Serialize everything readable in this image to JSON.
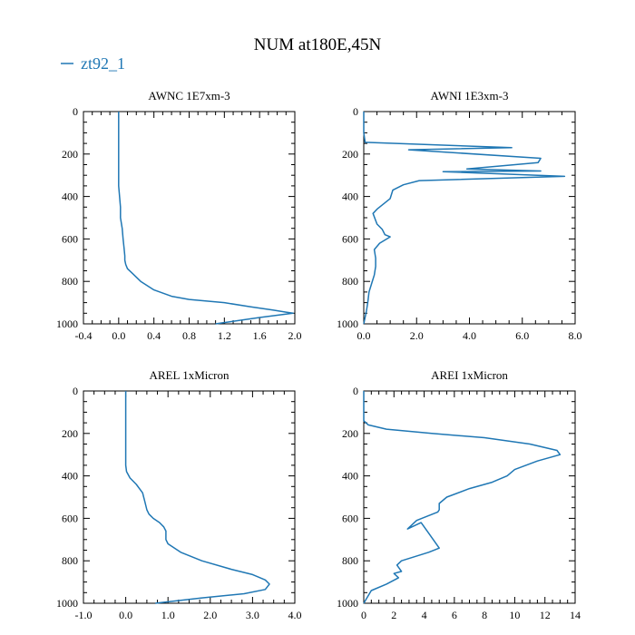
{
  "figure": {
    "title": "NUM at180E,45N",
    "legend": [
      {
        "label": "zt92_1",
        "color": "#1f77b4"
      }
    ]
  },
  "chart_data": [
    {
      "type": "line",
      "title": "AWNC  1E7xm-3",
      "xlim": [
        -0.4,
        2.0
      ],
      "ylim": [
        1000,
        0
      ],
      "x_ticks": [
        "-0.4",
        "0.0",
        "0.4",
        "0.8",
        "1.2",
        "1.6",
        "2.0"
      ],
      "x_tick_values": [
        -0.4,
        0.0,
        0.4,
        0.8,
        1.2,
        1.6,
        2.0
      ],
      "y_ticks": [
        "0",
        "200",
        "400",
        "600",
        "800",
        "1000"
      ],
      "y_tick_values": [
        0,
        200,
        400,
        600,
        800,
        1000
      ],
      "series": [
        {
          "name": "zt92_1",
          "color": "#1f77b4",
          "x": [
            0.0,
            0.0,
            0.0,
            0.0,
            0.0,
            0.01,
            0.02,
            0.02,
            0.04,
            0.05,
            0.06,
            0.07,
            0.07,
            0.08,
            0.1,
            0.15,
            0.25,
            0.4,
            0.6,
            0.8,
            1.2,
            1.5,
            1.75,
            1.9,
            1.98,
            1.6,
            1.1
          ],
          "y": [
            0,
            100,
            200,
            300,
            350,
            400,
            450,
            500,
            550,
            600,
            640,
            680,
            700,
            720,
            740,
            760,
            800,
            840,
            870,
            885,
            900,
            920,
            935,
            945,
            950,
            970,
            1000
          ]
        }
      ]
    },
    {
      "type": "line",
      "title": "AWNI  1E3xm-3",
      "xlim": [
        0.0,
        8.0
      ],
      "ylim": [
        1000,
        0
      ],
      "x_ticks": [
        "0.0",
        "2.0",
        "4.0",
        "6.0",
        "8.0"
      ],
      "x_tick_values": [
        0,
        2,
        4,
        6,
        8
      ],
      "y_ticks": [
        "0",
        "200",
        "400",
        "600",
        "800",
        "1000"
      ],
      "y_tick_values": [
        0,
        200,
        400,
        600,
        800,
        1000
      ],
      "series": [
        {
          "name": "zt92_1",
          "color": "#1f77b4",
          "x": [
            0.0,
            0.0,
            0.0,
            0.05,
            5.6,
            1.7,
            6.7,
            6.6,
            3.9,
            6.7,
            3.0,
            7.6,
            2.1,
            1.5,
            1.1,
            1.0,
            0.5,
            0.35,
            0.5,
            0.7,
            0.8,
            1.0,
            0.6,
            0.4,
            0.45,
            0.45,
            0.4,
            0.3,
            0.2,
            0.15,
            0.1,
            0.0
          ],
          "y": [
            0,
            60,
            100,
            145,
            170,
            180,
            220,
            240,
            270,
            280,
            283,
            305,
            325,
            345,
            370,
            410,
            460,
            480,
            530,
            555,
            580,
            590,
            620,
            650,
            690,
            730,
            770,
            810,
            850,
            900,
            940,
            1000
          ]
        }
      ]
    },
    {
      "type": "line",
      "title": "AREL  1xMicron",
      "xlim": [
        -1.0,
        4.0
      ],
      "ylim": [
        1000,
        0
      ],
      "x_ticks": [
        "-1.0",
        "0.0",
        "1.0",
        "2.0",
        "3.0",
        "4.0"
      ],
      "x_tick_values": [
        -1,
        0,
        1,
        2,
        3,
        4
      ],
      "y_ticks": [
        "0",
        "200",
        "400",
        "600",
        "800",
        "1000"
      ],
      "y_tick_values": [
        0,
        200,
        400,
        600,
        800,
        1000
      ],
      "series": [
        {
          "name": "zt92_1",
          "color": "#1f77b4",
          "x": [
            0.0,
            0.0,
            0.0,
            0.0,
            0.0,
            0.02,
            0.1,
            0.25,
            0.4,
            0.45,
            0.5,
            0.55,
            0.65,
            0.8,
            0.9,
            0.95,
            0.95,
            1.0,
            1.3,
            1.8,
            2.5,
            3.0,
            3.3,
            3.4,
            3.3,
            2.8,
            1.8,
            0.7
          ],
          "y": [
            0,
            100,
            200,
            300,
            350,
            380,
            410,
            440,
            480,
            520,
            560,
            580,
            600,
            620,
            640,
            660,
            700,
            720,
            760,
            800,
            840,
            865,
            890,
            910,
            935,
            955,
            975,
            1000
          ]
        }
      ]
    },
    {
      "type": "line",
      "title": "AREI  1xMicron",
      "xlim": [
        0,
        14
      ],
      "ylim": [
        1000,
        0
      ],
      "x_ticks": [
        "0",
        "2",
        "4",
        "6",
        "8",
        "10",
        "12",
        "14"
      ],
      "x_tick_values": [
        0,
        2,
        4,
        6,
        8,
        10,
        12,
        14
      ],
      "y_ticks": [
        "0",
        "200",
        "400",
        "600",
        "800",
        "1000"
      ],
      "y_tick_values": [
        0,
        200,
        400,
        600,
        800,
        1000
      ],
      "series": [
        {
          "name": "zt92_1",
          "color": "#1f77b4",
          "x": [
            0.0,
            0.0,
            0.0,
            0.3,
            1.5,
            4.5,
            8.0,
            11.0,
            12.8,
            13.0,
            11.5,
            10.0,
            9.5,
            8.5,
            7.0,
            5.5,
            5.0,
            5.0,
            4.9,
            3.5,
            2.9,
            3.8,
            4.3,
            5.0,
            4.3,
            2.5,
            2.2,
            2.5,
            2.0,
            2.3,
            1.5,
            0.5,
            0.0
          ],
          "y": [
            0,
            100,
            140,
            160,
            180,
            200,
            220,
            250,
            280,
            300,
            330,
            370,
            400,
            430,
            460,
            500,
            530,
            560,
            570,
            610,
            650,
            620,
            670,
            740,
            760,
            800,
            820,
            850,
            860,
            880,
            910,
            940,
            1000
          ]
        }
      ]
    }
  ]
}
